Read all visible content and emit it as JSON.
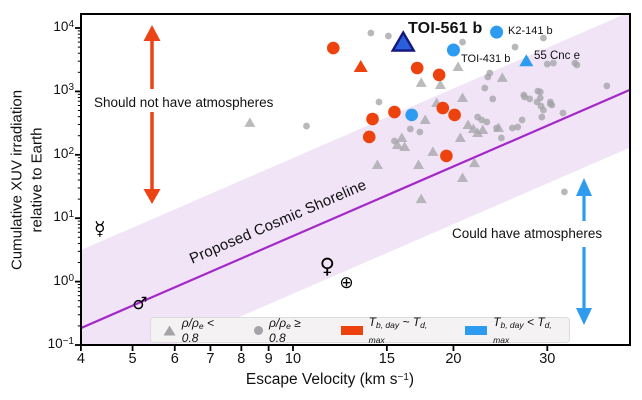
{
  "figure": {
    "ylabel_line1": "Cumulative XUV irradiation",
    "ylabel_line2": "relative to Earth",
    "xlabel": {
      "pre": "Escape Velocity (km s",
      "sup": "−1",
      "post": ")"
    }
  },
  "annotations": {
    "no_atmosphere": "Should not have atmospheres",
    "could_atmosphere": "Could have atmospheres",
    "shoreline_label": "Proposed Cosmic Shoreline"
  },
  "colors": {
    "gray": "#a4a4a8",
    "red": "#ed420d",
    "blue": "#2d9bf0",
    "toi561_fill": "#2b5fd9",
    "toi561_edge": "#15157f",
    "shoreline": "#a428c9",
    "band": "#f0e4f6",
    "arrow_orange": "#eb4313",
    "arrow_blue": "#2e9bee",
    "axis": "#000000"
  },
  "legend": {
    "items": [
      {
        "type": "triangle",
        "color_key": "gray",
        "pre": "ρ/ρ",
        "sub": "e",
        "post": " < 0.8"
      },
      {
        "type": "circle",
        "color_key": "gray",
        "pre": "ρ/ρ",
        "sub": "e",
        "post": " ≥ 0.8"
      },
      {
        "type": "rect",
        "color_key": "red",
        "t1": "T",
        "s1": "b, day",
        "mid": " ~ ",
        "t2": "T",
        "s2": "d, max"
      },
      {
        "type": "rect",
        "color_key": "blue",
        "t1": "T",
        "s1": "b, day",
        "mid": " < ",
        "t2": "T",
        "s2": "d, max"
      }
    ]
  },
  "chart_data": {
    "type": "scatter",
    "title": "",
    "xlabel": "Escape Velocity (km s^-1)",
    "ylabel": "Cumulative XUV irradiation relative to Earth",
    "x_scale": "log",
    "y_scale": "log",
    "xlim": [
      4,
      43
    ],
    "ylim": [
      0.09,
      16000
    ],
    "x_ticks": [
      4,
      5,
      6,
      7,
      8,
      9,
      10,
      15,
      20,
      30
    ],
    "y_tick_exponents": [
      -1,
      0,
      1,
      2,
      3,
      4
    ],
    "grid": false,
    "legend_position": "lower center",
    "shoreline": {
      "x": [
        4.0,
        42.9
      ],
      "y": [
        0.185,
        1060
      ]
    },
    "band": {
      "upper_decades": 1.23,
      "lower_decades": 0.91
    },
    "series": [
      {
        "name": "rho/rho_e < 0.8 (low density)",
        "marker": "triangle",
        "color_key": "gray",
        "points": [
          [
            8.3,
            318
          ],
          [
            17.4,
            1360
          ],
          [
            18.9,
            1260
          ],
          [
            20.4,
            2430
          ],
          [
            18.6,
            656
          ],
          [
            20.8,
            787
          ],
          [
            17.7,
            354
          ],
          [
            16.0,
            184
          ],
          [
            15.7,
            143
          ],
          [
            16.2,
            133
          ],
          [
            14.4,
            69
          ],
          [
            17.2,
            69
          ],
          [
            18.3,
            111
          ],
          [
            17.4,
            20
          ],
          [
            20.8,
            43
          ],
          [
            21.9,
            74
          ],
          [
            21.3,
            295
          ],
          [
            21.8,
            255
          ],
          [
            22.2,
            221
          ],
          [
            22.7,
            246
          ],
          [
            20.6,
            184
          ],
          [
            24.3,
            265
          ],
          [
            24.7,
            1630
          ]
        ]
      },
      {
        "name": "rho/rho_e >= 0.8 (high density)",
        "marker": "circle",
        "color_key": "gray",
        "points": [
          [
            10.6,
            284
          ],
          [
            14.0,
            8340
          ],
          [
            15.1,
            7480
          ],
          [
            14.5,
            680
          ],
          [
            15.5,
            165
          ],
          [
            16.6,
            255
          ],
          [
            17.3,
            229
          ],
          [
            20.8,
            6000
          ],
          [
            26.1,
            5000
          ],
          [
            23.2,
            1690
          ],
          [
            23.4,
            1950
          ],
          [
            22.9,
            1130
          ],
          [
            23.7,
            760
          ],
          [
            22.2,
            394
          ],
          [
            22.6,
            354
          ],
          [
            23.1,
            329
          ],
          [
            24.1,
            265
          ],
          [
            24.6,
            184
          ],
          [
            25.8,
            265
          ],
          [
            26.4,
            274
          ],
          [
            26.9,
            354
          ],
          [
            27.2,
            816
          ],
          [
            27.8,
            760
          ],
          [
            28.7,
            680
          ],
          [
            29.2,
            588
          ],
          [
            30.4,
            633
          ],
          [
            29.3,
            394
          ],
          [
            30.6,
            610
          ],
          [
            29.5,
            6950
          ],
          [
            30.0,
            2700
          ],
          [
            30.8,
            2800
          ],
          [
            34.1,
            2610
          ],
          [
            38.8,
            1220
          ],
          [
            27.1,
            877
          ],
          [
            28.8,
            1010
          ],
          [
            29.1,
            787
          ],
          [
            32.3,
            26
          ],
          [
            33.8,
            2800
          ],
          [
            29.1,
            980
          ],
          [
            30.4,
            680
          ],
          [
            29.5,
            509
          ],
          [
            32.1,
            456
          ]
        ]
      },
      {
        "name": "T_b,day ~ T_d,max (circles)",
        "marker": "circle",
        "color_key": "red",
        "points": [
          [
            11.9,
            4830
          ],
          [
            17.1,
            2340
          ],
          [
            18.8,
            1820
          ],
          [
            14.1,
            367
          ],
          [
            15.5,
            473
          ],
          [
            13.9,
            191
          ],
          [
            19.1,
            547
          ],
          [
            20.1,
            425
          ],
          [
            19.4,
            96
          ]
        ]
      },
      {
        "name": "T_b,day ~ T_d,max (triangles)",
        "marker": "triangle",
        "color_key": "red",
        "points": [
          [
            13.4,
            2430
          ]
        ]
      },
      {
        "name": "T_b,day < T_d,max (circles)",
        "marker": "circle",
        "color_key": "blue",
        "points": [
          [
            16.7,
            425
          ]
        ]
      }
    ],
    "labeled_points": [
      {
        "label": "TOI-561 b",
        "v": 16.1,
        "xuv": 5800,
        "marker": "triangle",
        "color_key": "blue",
        "emphasis": true
      },
      {
        "label": "K2-141 b",
        "v": 24.1,
        "xuv": 8600,
        "marker": "circle",
        "color_key": "blue",
        "emphasis": false
      },
      {
        "label": "TOI-431 b",
        "v": 20.0,
        "xuv": 4500,
        "marker": "circle",
        "color_key": "blue",
        "emphasis": false
      },
      {
        "label": "55 Cnc e",
        "v": 27.4,
        "xuv": 3000,
        "marker": "triangle",
        "color_key": "blue",
        "emphasis": false
      }
    ],
    "solar_system": [
      {
        "name": "Mercury",
        "symbol": "☿",
        "v": 4.34,
        "xuv": 6.8
      },
      {
        "name": "Mars",
        "symbol": "♂",
        "v": 5.16,
        "xuv": 0.44
      },
      {
        "name": "Venus",
        "symbol": "♀",
        "v": 11.6,
        "xuv": 1.76
      },
      {
        "name": "Earth",
        "symbol": "⊕",
        "v": 12.6,
        "xuv": 0.95
      }
    ]
  }
}
